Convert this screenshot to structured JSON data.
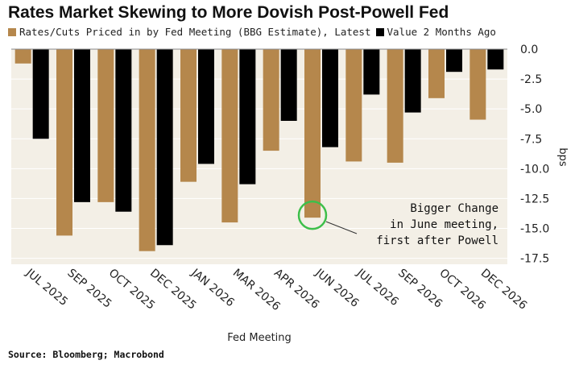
{
  "chart_data": {
    "type": "bar",
    "title": "Rates Market Skewing to More Dovish Post-Powell Fed",
    "categories": [
      "JUL 2025",
      "SEP 2025",
      "OCT 2025",
      "DEC 2025",
      "JAN 2026",
      "MAR 2026",
      "APR 2026",
      "JUN 2026",
      "JUL 2026",
      "SEP 2026",
      "OCT 2026",
      "DEC 2026"
    ],
    "series": [
      {
        "name": "Rates/Cuts Priced in by Fed Meeting (BBG Estimate), Latest",
        "color": "#b5874c",
        "values": [
          -1.2,
          -15.6,
          -12.8,
          -16.9,
          -11.1,
          -14.5,
          -8.5,
          -14.1,
          -9.4,
          -9.5,
          -4.1,
          -5.9
        ]
      },
      {
        "name": "Value 2 Months Ago",
        "color": "#000000",
        "values": [
          -7.5,
          -12.8,
          -13.6,
          -16.4,
          -9.6,
          -11.3,
          -6.0,
          -8.2,
          -3.8,
          -5.3,
          -1.9,
          -1.7
        ]
      }
    ],
    "yticks": [
      0.0,
      -2.5,
      -5.0,
      -7.5,
      -10.0,
      -12.5,
      -15.0,
      -17.5
    ],
    "ytick_labels": [
      "0.0",
      "-2.5",
      "-5.0",
      "-7.5",
      "-10.0",
      "-12.5",
      "-15.0",
      "-17.5"
    ],
    "ylim": [
      -18.0,
      0.0
    ],
    "xlabel": "Fed Meeting",
    "ylabel": "bps",
    "grid": true,
    "legend_position": "top",
    "annotation": {
      "lines": [
        "Bigger Change",
        "in June meeting,",
        "first after Powell"
      ],
      "category": "JUN 2026",
      "value": -14.1,
      "highlight_color": "#3dbf4a"
    },
    "source": "Source: Bloomberg; Macrobond"
  }
}
